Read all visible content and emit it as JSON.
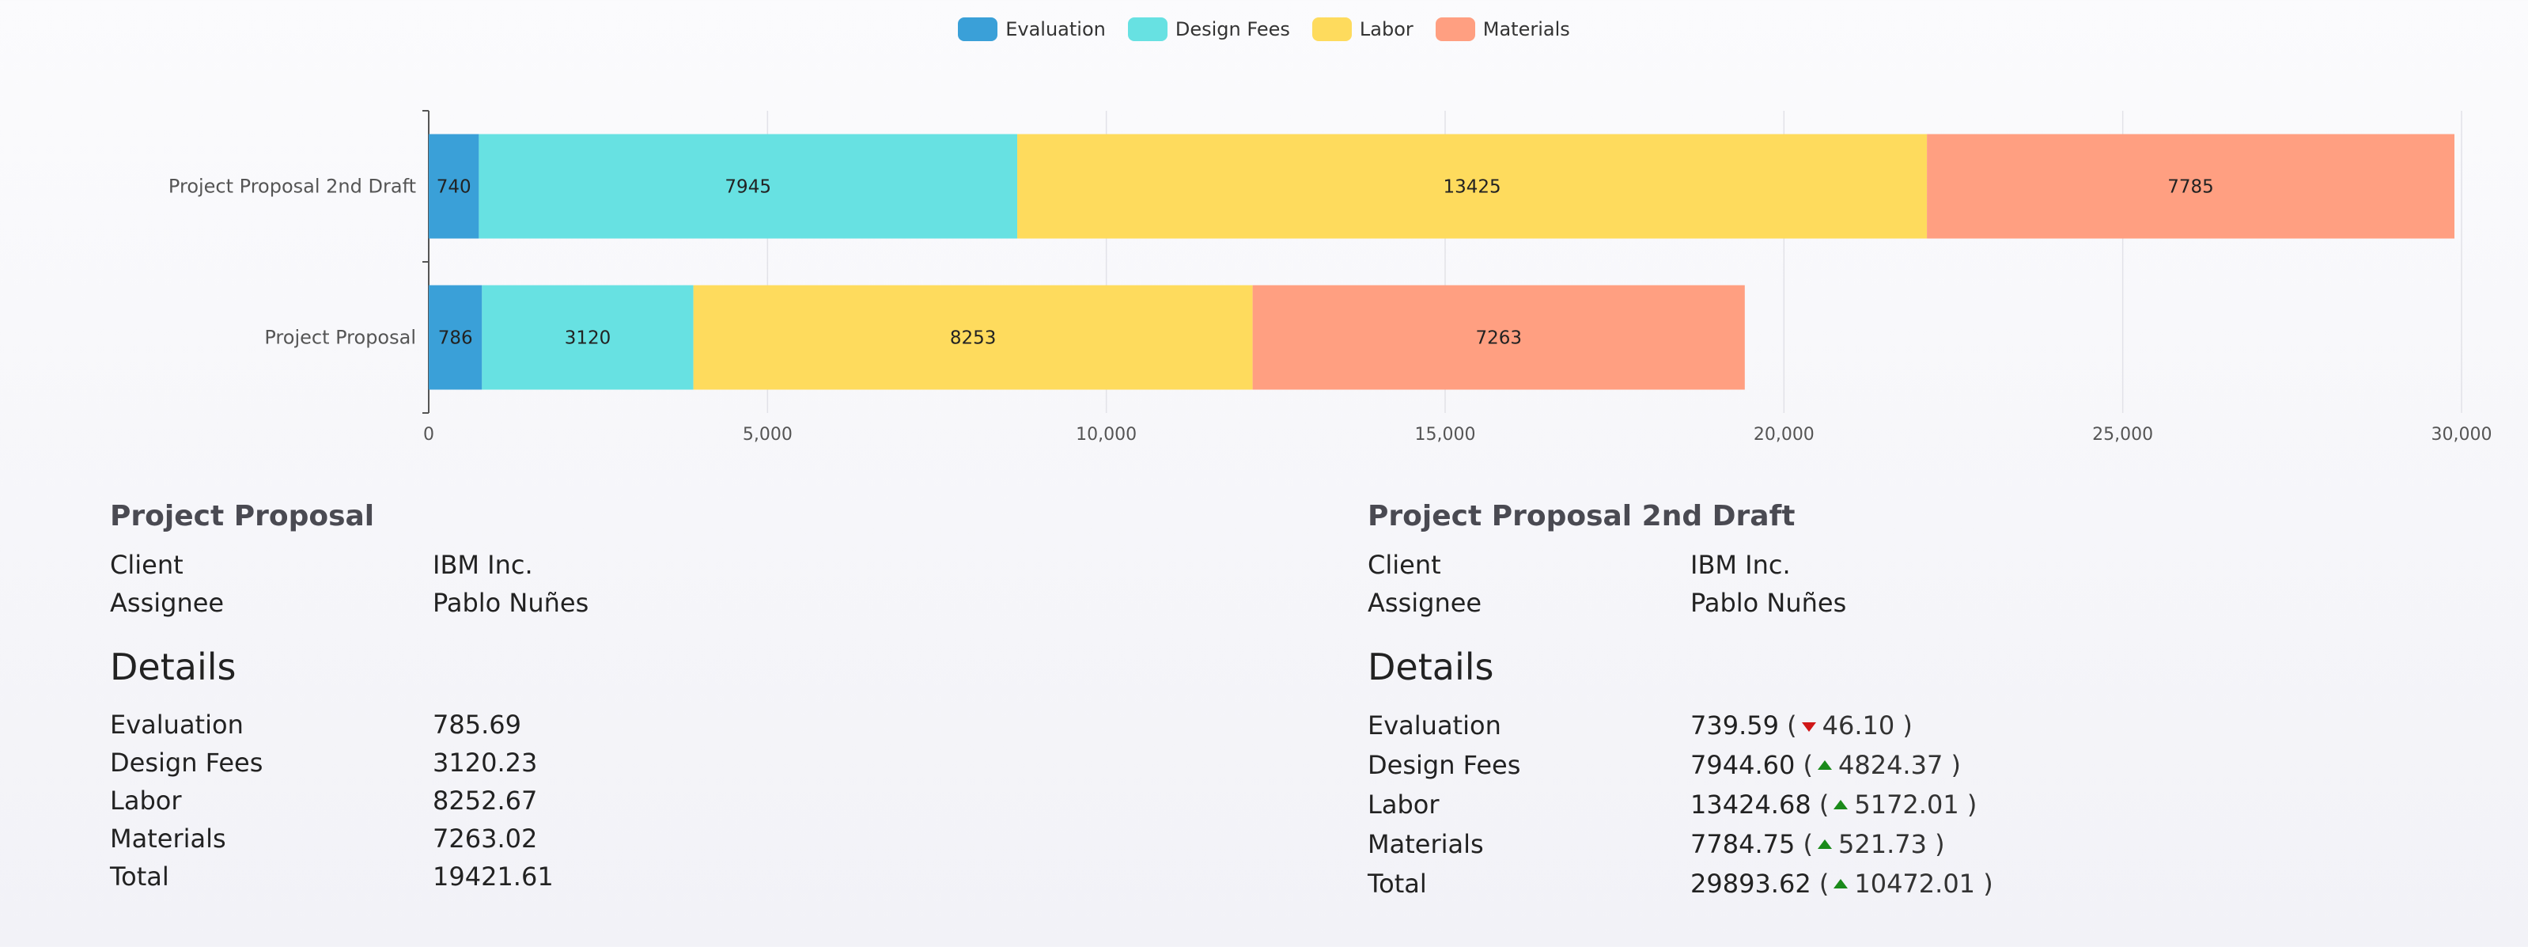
{
  "legend": {
    "items": [
      {
        "label": "Evaluation",
        "color": "#3aa0d8"
      },
      {
        "label": "Design Fees",
        "color": "#67e1e2"
      },
      {
        "label": "Labor",
        "color": "#fedb5d"
      },
      {
        "label": "Materials",
        "color": "#ff9f81"
      }
    ]
  },
  "chart_data": {
    "type": "bar",
    "orientation": "horizontal",
    "stacked": true,
    "categories": [
      "Project Proposal 2nd Draft",
      "Project Proposal"
    ],
    "series": [
      {
        "name": "Evaluation",
        "color": "#3aa0d8",
        "values": [
          740,
          786
        ]
      },
      {
        "name": "Design Fees",
        "color": "#67e1e2",
        "values": [
          7945,
          3120
        ]
      },
      {
        "name": "Labor",
        "color": "#fedb5d",
        "values": [
          13425,
          8253
        ]
      },
      {
        "name": "Materials",
        "color": "#ff9f81",
        "values": [
          7785,
          7263
        ]
      }
    ],
    "xlim": [
      0,
      30000
    ],
    "x_ticks": [
      "0",
      "5,000",
      "10,000",
      "15,000",
      "20,000",
      "25,000",
      "30,000"
    ],
    "grid": true,
    "legend_position": "top"
  },
  "left_panel": {
    "title": "Project Proposal",
    "client_label": "Client",
    "client_value": "IBM Inc.",
    "assignee_label": "Assignee",
    "assignee_value": "Pablo Nuñes",
    "details_title": "Details",
    "details": [
      {
        "label": "Evaluation",
        "value": "785.69"
      },
      {
        "label": "Design Fees",
        "value": "3120.23"
      },
      {
        "label": "Labor",
        "value": "8252.67"
      },
      {
        "label": "Materials",
        "value": "7263.02"
      },
      {
        "label": "Total",
        "value": "19421.61"
      }
    ]
  },
  "right_panel": {
    "title": "Project Proposal 2nd Draft",
    "client_label": "Client",
    "client_value": "IBM Inc.",
    "assignee_label": "Assignee",
    "assignee_value": "Pablo Nuñes",
    "details_title": "Details",
    "details": [
      {
        "label": "Evaluation",
        "value": "739.59",
        "direction": "down",
        "delta": "46.10"
      },
      {
        "label": "Design Fees",
        "value": "7944.60",
        "direction": "up",
        "delta": "4824.37"
      },
      {
        "label": "Labor",
        "value": "13424.68",
        "direction": "up",
        "delta": "5172.01"
      },
      {
        "label": "Materials",
        "value": "7784.75",
        "direction": "up",
        "delta": "521.73"
      },
      {
        "label": "Total",
        "value": "29893.62",
        "direction": "up",
        "delta": "10472.01"
      }
    ]
  }
}
